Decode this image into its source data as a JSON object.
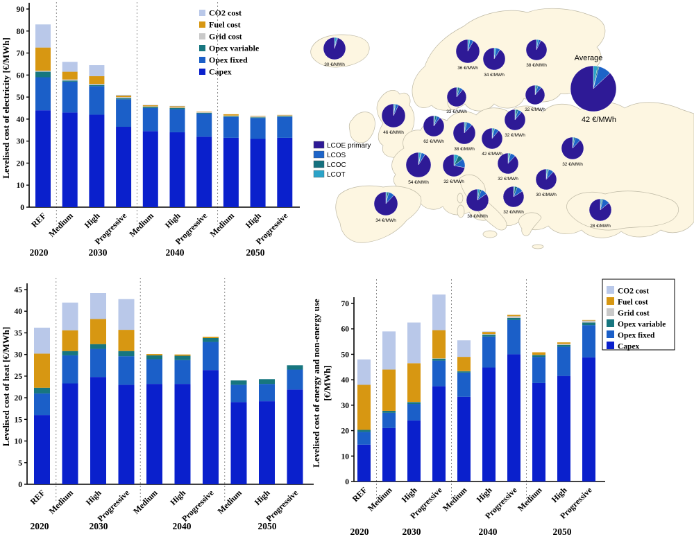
{
  "palette": {
    "capex": "#0a20cc",
    "opex_fixed": "#1b5fc8",
    "opex_var": "#17767f",
    "grid": "#c9c9c9",
    "fuel": "#d79712",
    "co2": "#b9c8e9",
    "lcoe_primary": "#2e1a96",
    "lcos": "#1d64c8",
    "lcoc": "#14707e",
    "lcot": "#2ba3c8",
    "land": "#fdf6e1",
    "land_border": "#bdb8a4",
    "dashed_line": "#8a8a8a"
  },
  "bar_legend": [
    {
      "key": "co2",
      "label": "CO2 cost"
    },
    {
      "key": "fuel",
      "label": "Fuel cost"
    },
    {
      "key": "grid",
      "label": "Grid cost"
    },
    {
      "key": "opex_var",
      "label": "Opex variable"
    },
    {
      "key": "opex_fixed",
      "label": "Opex fixed"
    },
    {
      "key": "capex",
      "label": "Capex"
    }
  ],
  "chart_data": [
    {
      "id": "electricity",
      "type": "bar",
      "stacked": true,
      "ylabel": "Levelised cost of electricity [€/MWh]",
      "ylim": [
        0,
        90
      ],
      "ytick_step": 10,
      "grid": false,
      "legend_position": "top-right-inside",
      "categories": [
        "REF",
        "Medium",
        "High",
        "Progressive",
        "Medium",
        "High",
        "Progressive",
        "Medium",
        "High",
        "Progressive"
      ],
      "years": [
        "2020",
        "2030",
        "2040",
        "2050"
      ],
      "group_separators_after": [
        0,
        3,
        6
      ],
      "series": [
        {
          "key": "capex",
          "name": "Capex",
          "values": [
            44,
            43,
            42,
            36.5,
            34.5,
            34,
            32,
            31.5,
            31,
            31.5
          ]
        },
        {
          "key": "opex_fixed",
          "name": "Opex fixed",
          "values": [
            15,
            14,
            13,
            12.5,
            10.5,
            10.5,
            10.5,
            9.5,
            9.5,
            9.5
          ]
        },
        {
          "key": "opex_var",
          "name": "Opex variable",
          "values": [
            2.5,
            0.5,
            0.5,
            0.5,
            0.5,
            0.5,
            0.3,
            0.3,
            0.3,
            0.3
          ]
        },
        {
          "key": "grid",
          "name": "Grid cost",
          "values": [
            0.5,
            0.5,
            0.5,
            0.5,
            0.3,
            0.3,
            0.4,
            0.3,
            0.4,
            0.4
          ]
        },
        {
          "key": "fuel",
          "name": "Fuel cost",
          "values": [
            10.5,
            3.5,
            3.5,
            0.7,
            0.5,
            0.5,
            0.2,
            0.6,
            0.2,
            0.2
          ]
        },
        {
          "key": "co2",
          "name": "CO2 cost",
          "values": [
            10.5,
            4.5,
            5,
            0.3,
            0.2,
            0.2,
            0,
            0,
            0,
            0
          ]
        }
      ]
    },
    {
      "id": "heat",
      "type": "bar",
      "stacked": true,
      "ylabel": "Levelised cost of heat [€/MWh]",
      "ylim": [
        0,
        45
      ],
      "ytick_step": 5,
      "grid": false,
      "legend_position": "none",
      "categories": [
        "REF",
        "Medium",
        "High",
        "Progressive",
        "Medium",
        "High",
        "Progressive",
        "Medium",
        "High",
        "Progressive"
      ],
      "years": [
        "2020",
        "2030",
        "2040",
        "2050"
      ],
      "group_separators_after": [
        0,
        3,
        6
      ],
      "series": [
        {
          "key": "capex",
          "name": "Capex",
          "values": [
            16,
            23.3,
            24.8,
            23,
            23.2,
            23.2,
            26.4,
            19,
            19.2,
            21.9
          ]
        },
        {
          "key": "opex_fixed",
          "name": "Opex fixed",
          "values": [
            5,
            6.5,
            6.5,
            6.6,
            5.7,
            5.5,
            6.5,
            4,
            4,
            4.6
          ]
        },
        {
          "key": "opex_var",
          "name": "Opex variable",
          "values": [
            1.3,
            1,
            1.1,
            1.2,
            0.9,
            1,
            0.9,
            1,
            1.1,
            1
          ]
        },
        {
          "key": "grid",
          "name": "Grid cost",
          "values": [
            0,
            0,
            0,
            0,
            0,
            0,
            0,
            0,
            0,
            0
          ]
        },
        {
          "key": "fuel",
          "name": "Fuel cost",
          "values": [
            7.9,
            4.8,
            5.8,
            4.9,
            0.3,
            0.3,
            0.3,
            0,
            0,
            0
          ]
        },
        {
          "key": "co2",
          "name": "CO2 cost",
          "values": [
            6,
            6.4,
            6,
            7.1,
            0,
            0,
            0,
            0,
            0,
            0
          ]
        }
      ]
    },
    {
      "id": "energy",
      "type": "bar",
      "stacked": true,
      "ylabel": "Levelised cost of energy and non-energy use [€/MWh]",
      "ylabel_lines": [
        "Levelised cost of energy and non-energy use",
        "[€/MWh]"
      ],
      "ylim": [
        0,
        70
      ],
      "ytick_step": 10,
      "grid": false,
      "legend_position": "top-right-boxed",
      "categories": [
        "REF",
        "Medium",
        "High",
        "Progressive",
        "Medium",
        "High",
        "Progressive",
        "Medium",
        "High",
        "Progressive"
      ],
      "years": [
        "2020",
        "2030",
        "2040",
        "2050"
      ],
      "group_separators_after": [
        0,
        3,
        6
      ],
      "series": [
        {
          "key": "capex",
          "name": "Capex",
          "values": [
            14.5,
            21,
            24,
            37.5,
            33.3,
            44.8,
            50,
            38.7,
            41.5,
            48.8
          ]
        },
        {
          "key": "opex_fixed",
          "name": "Opex fixed",
          "values": [
            5,
            6,
            6.5,
            10,
            9.5,
            12.2,
            13.5,
            10.3,
            11.5,
            12.7
          ]
        },
        {
          "key": "opex_var",
          "name": "Opex variable",
          "values": [
            0.8,
            0.8,
            0.7,
            0.8,
            0.5,
            0.7,
            0.8,
            0.7,
            0.7,
            1
          ]
        },
        {
          "key": "grid",
          "name": "Grid cost",
          "values": [
            0,
            0,
            0.1,
            0.1,
            0.1,
            0.3,
            0.7,
            0.1,
            0.4,
            0.8
          ]
        },
        {
          "key": "fuel",
          "name": "Fuel cost",
          "values": [
            17.7,
            16.2,
            15.2,
            11.1,
            5.6,
            0.8,
            0.5,
            1,
            0.6,
            0.2
          ]
        },
        {
          "key": "co2",
          "name": "CO2 cost",
          "values": [
            10,
            15,
            16,
            14,
            6.5,
            0.2,
            0,
            0,
            0,
            0
          ]
        }
      ]
    },
    {
      "id": "europe-map-pies",
      "type": "pie",
      "legend": [
        {
          "key": "lcoe_primary",
          "label": "LCOE primary"
        },
        {
          "key": "lcos",
          "label": "LCOS"
        },
        {
          "key": "lcoc",
          "label": "LCOC"
        },
        {
          "key": "lcot",
          "label": "LCOT"
        }
      ],
      "slice_order_clockwise_from_top": [
        "lcot",
        "lcoc",
        "lcos",
        "lcoe_primary"
      ],
      "average": {
        "title": "Average",
        "label": "42 €/MWh",
        "shares": {
          "lcoe_primary": 87,
          "lcos": 9,
          "lcoc": 1,
          "lcot": 3
        }
      },
      "pies": [
        {
          "id": "iceland",
          "label": "30 €/MWh",
          "shares": {
            "lcoe_primary": 95,
            "lcos": 2,
            "lcoc": 0,
            "lcot": 3
          }
        },
        {
          "id": "norway",
          "label": "36 €/MWh",
          "shares": {
            "lcoe_primary": 92,
            "lcos": 5,
            "lcoc": 0,
            "lcot": 3
          }
        },
        {
          "id": "sweden",
          "label": "34 €/MWh",
          "shares": {
            "lcoe_primary": 91,
            "lcos": 6,
            "lcoc": 0,
            "lcot": 3
          }
        },
        {
          "id": "finland",
          "label": "38 €/MWh",
          "shares": {
            "lcoe_primary": 93,
            "lcos": 4,
            "lcoc": 0,
            "lcot": 3
          }
        },
        {
          "id": "baltic",
          "label": "32 €/MWh",
          "shares": {
            "lcoe_primary": 89,
            "lcos": 6,
            "lcoc": 3,
            "lcot": 2
          }
        },
        {
          "id": "denmark",
          "label": "33 €/MWh",
          "shares": {
            "lcoe_primary": 89,
            "lcos": 6,
            "lcoc": 3,
            "lcot": 2
          }
        },
        {
          "id": "uk",
          "label": "46 €/MWh",
          "shares": {
            "lcoe_primary": 93,
            "lcos": 4,
            "lcoc": 1,
            "lcot": 2
          }
        },
        {
          "id": "benelux",
          "label": "62 €/MWh",
          "shares": {
            "lcoe_primary": 90,
            "lcos": 5,
            "lcoc": 3,
            "lcot": 2
          }
        },
        {
          "id": "poland",
          "label": "32 €/MWh",
          "shares": {
            "lcoe_primary": 89,
            "lcos": 6,
            "lcoc": 3,
            "lcot": 2
          }
        },
        {
          "id": "germany",
          "label": "38 €/MWh",
          "shares": {
            "lcoe_primary": 88,
            "lcos": 8,
            "lcoc": 2,
            "lcot": 2
          }
        },
        {
          "id": "czechia",
          "label": "42 €/MWh",
          "shares": {
            "lcoe_primary": 89,
            "lcos": 7,
            "lcoc": 2,
            "lcot": 2
          }
        },
        {
          "id": "ukraine",
          "label": "32 €/MWh",
          "shares": {
            "lcoe_primary": 88,
            "lcos": 8,
            "lcoc": 2,
            "lcot": 2
          }
        },
        {
          "id": "france",
          "label": "54 €/MWh",
          "shares": {
            "lcoe_primary": 91,
            "lcos": 5,
            "lcoc": 1,
            "lcot": 3
          }
        },
        {
          "id": "switzerland",
          "label": "32 €/MWh",
          "shares": {
            "lcoe_primary": 72,
            "lcos": 13,
            "lcoc": 8,
            "lcot": 7
          }
        },
        {
          "id": "hungary",
          "label": "32 €/MWh",
          "shares": {
            "lcoe_primary": 88,
            "lcos": 8,
            "lcoc": 2,
            "lcot": 2
          }
        },
        {
          "id": "romania",
          "label": "30 €/MWh",
          "shares": {
            "lcoe_primary": 88,
            "lcos": 8,
            "lcoc": 2,
            "lcot": 2
          }
        },
        {
          "id": "italy",
          "label": "38 €/MWh",
          "shares": {
            "lcoe_primary": 85,
            "lcos": 9,
            "lcoc": 3,
            "lcot": 3
          }
        },
        {
          "id": "serbia",
          "label": "32 €/MWh",
          "shares": {
            "lcoe_primary": 84,
            "lcos": 10,
            "lcoc": 4,
            "lcot": 2
          }
        },
        {
          "id": "spain",
          "label": "34 €/MWh",
          "shares": {
            "lcoe_primary": 88,
            "lcos": 8,
            "lcoc": 2,
            "lcot": 2
          }
        },
        {
          "id": "turkey",
          "label": "28 €/MWh",
          "shares": {
            "lcoe_primary": 86,
            "lcos": 10,
            "lcoc": 2,
            "lcot": 2
          }
        }
      ]
    }
  ]
}
